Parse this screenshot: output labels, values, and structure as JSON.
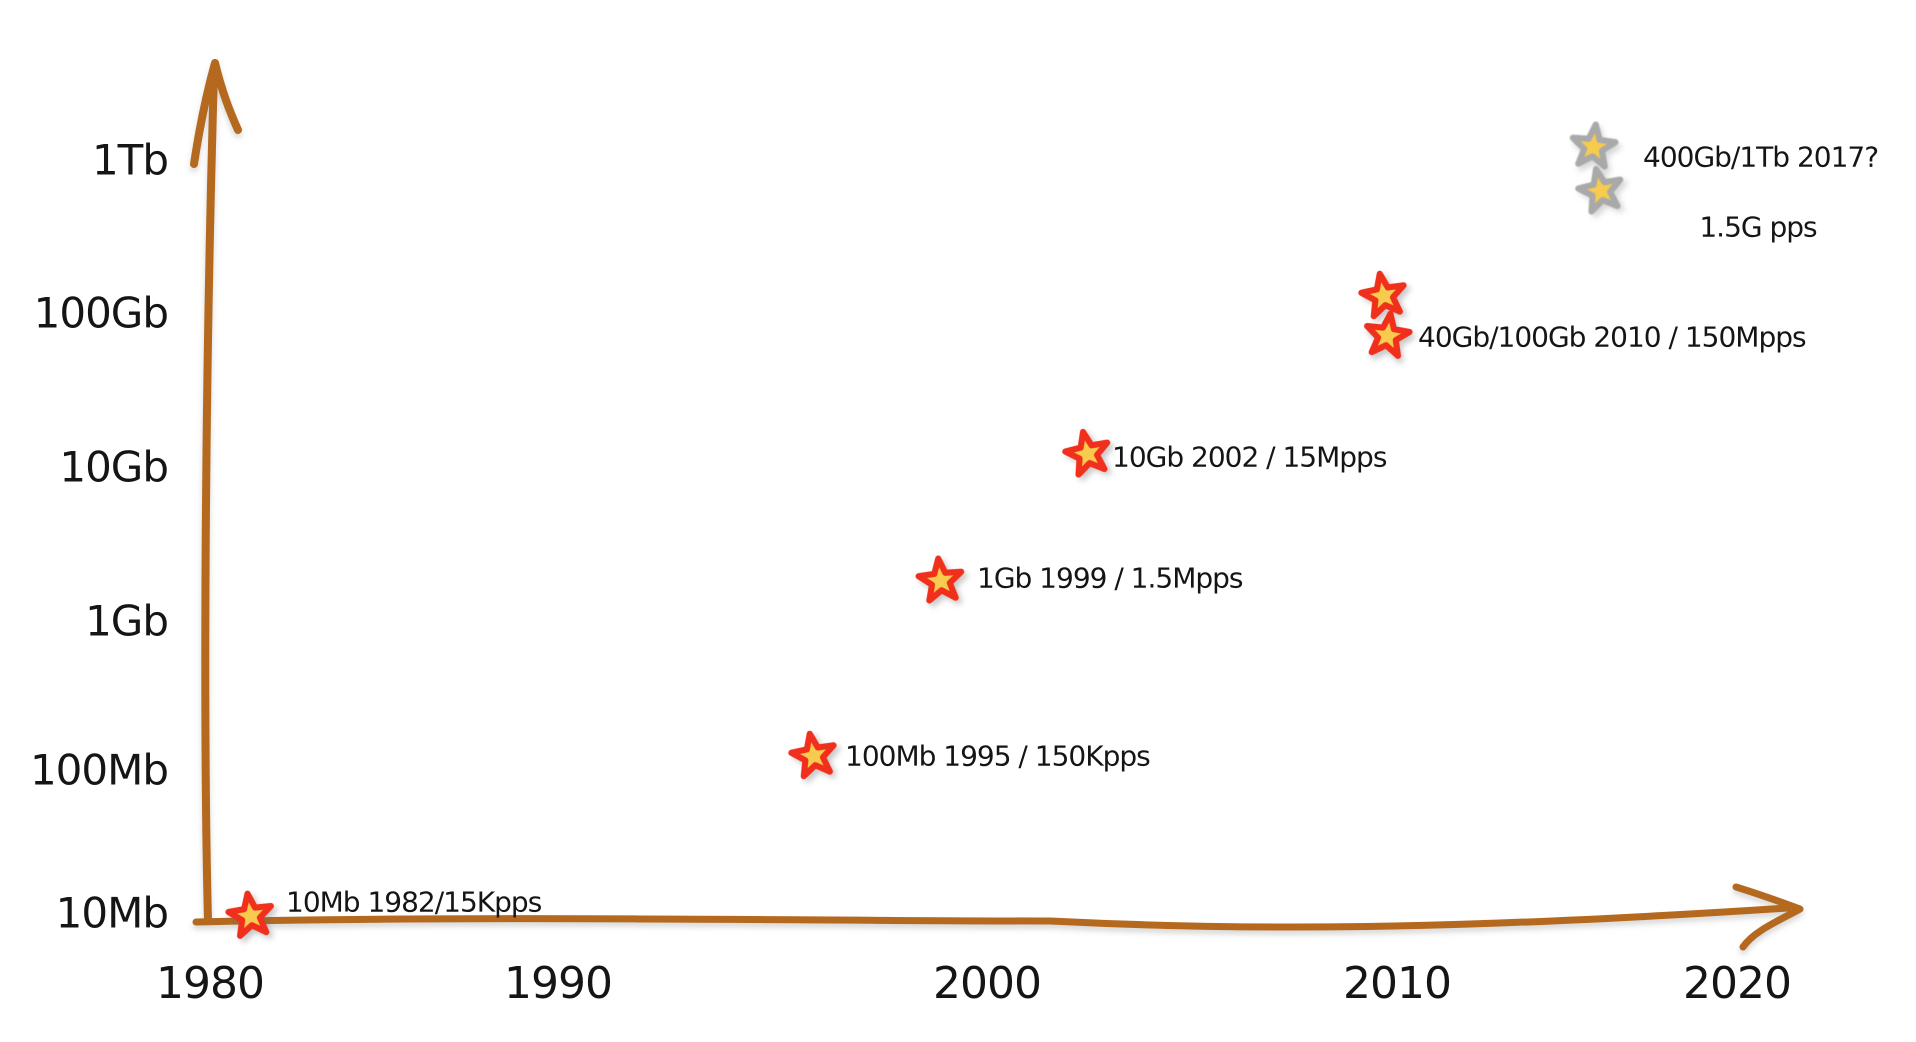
{
  "page": {
    "background": "#ffffff"
  },
  "chart_data": {
    "type": "scatter",
    "title": "",
    "xlabel": "",
    "ylabel": "",
    "x_axis": {
      "ticks": [
        "1980",
        "1990",
        "2000",
        "2010",
        "2020"
      ],
      "range": [
        1978,
        2022
      ],
      "arrow": true
    },
    "y_axis": {
      "scale": "log",
      "ticks": [
        "1Tb",
        "100Gb",
        "10Gb",
        "1Gb",
        "100Mb",
        "10Mb"
      ],
      "arrow": true
    },
    "grid": false,
    "legend": false,
    "points": [
      {
        "speed": "10Mb",
        "year": "1982",
        "pps": "15Kpps",
        "label": "10Mb 1982/15Kpps",
        "marker": "red-star",
        "markers": 1
      },
      {
        "speed": "100Mb",
        "year": "1995",
        "pps": "150Kpps",
        "label": "100Mb 1995 / 150Kpps",
        "marker": "red-star",
        "markers": 1
      },
      {
        "speed": "1Gb",
        "year": "1999",
        "pps": "1.5Mpps",
        "label": "1Gb 1999 / 1.5Mpps",
        "marker": "red-star",
        "markers": 1
      },
      {
        "speed": "10Gb",
        "year": "2002",
        "pps": "15Mpps",
        "label": "10Gb 2002 / 15Mpps",
        "marker": "red-star",
        "markers": 1
      },
      {
        "speed": "40Gb/100Gb",
        "year": "2010",
        "pps": "150Mpps",
        "label": "40Gb/100Gb 2010 / 150Mpps",
        "marker": "red-star",
        "markers": 2
      },
      {
        "speed": "400Gb/1Tb",
        "year": "2017?",
        "pps": "1.5G pps",
        "label": "400Gb/1Tb 2017?",
        "sublabel": "1.5G pps",
        "marker": "gray-star",
        "markers": 2
      }
    ],
    "colors": {
      "axis": "#b4691f",
      "red_star": "#f0301c",
      "gray_star": "#a9a9a9",
      "star_accent": "#f7cb4d",
      "text": "#151515",
      "background": "#ffffff"
    }
  }
}
